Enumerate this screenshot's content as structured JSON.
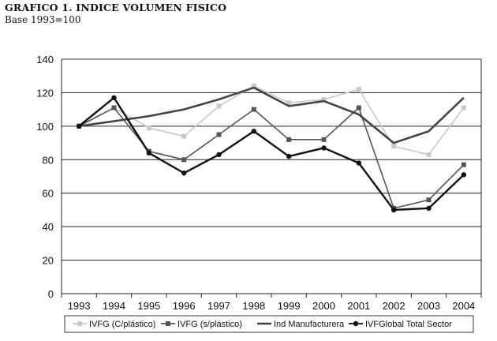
{
  "title": "GRAFICO 1. INDICE VOLUMEN FISICO",
  "subtitle": "Base 1993=100",
  "chart_data": {
    "type": "line",
    "title": "GRAFICO 1. INDICE VOLUMEN FISICO",
    "subtitle": "Base 1993=100",
    "x": [
      "1993",
      "1994",
      "1995",
      "1996",
      "1997",
      "1998",
      "1999",
      "2000",
      "2001",
      "2002",
      "2003",
      "2004"
    ],
    "ylim": [
      0,
      140
    ],
    "yticks": [
      0,
      20,
      40,
      60,
      80,
      100,
      120,
      140
    ],
    "grid": true,
    "legend_position": "bottom",
    "series": [
      {
        "name": "IVFG (C/plástico)",
        "color": "#c8c8c8",
        "marker": "square",
        "values": [
          100,
          111,
          99,
          94,
          112,
          124,
          114,
          116,
          122,
          88,
          83,
          111
        ]
      },
      {
        "name": "IVFG (s/plástico)",
        "color": "#555555",
        "marker": "square",
        "values": [
          100,
          111,
          85,
          80,
          95,
          110,
          92,
          92,
          111,
          51,
          56,
          77
        ]
      },
      {
        "name": "Ind Manufacturera",
        "color": "#444444",
        "marker": "none",
        "values": [
          100,
          103,
          106,
          110,
          116,
          123,
          112,
          115,
          107,
          90,
          97,
          117
        ]
      },
      {
        "name": "IVFGlobal Total Sector",
        "color": "#111111",
        "marker": "circle",
        "values": [
          100,
          117,
          84,
          72,
          83,
          97,
          82,
          87,
          78,
          50,
          51,
          71
        ]
      }
    ]
  }
}
